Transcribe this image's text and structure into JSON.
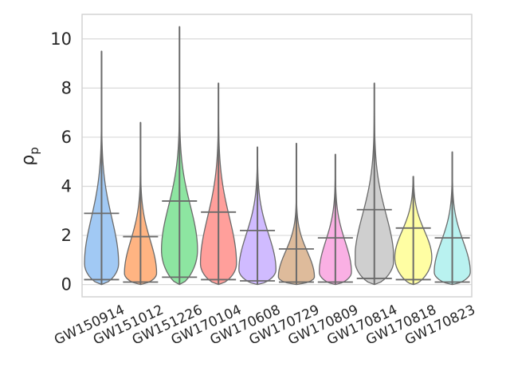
{
  "chart_data": {
    "type": "violin",
    "title": "",
    "xlabel": "",
    "ylabel": "ρ",
    "ylabel_subscript": "p",
    "ylim": [
      -0.5,
      11.0
    ],
    "yticks": [
      0,
      2,
      4,
      6,
      8,
      10
    ],
    "grid": true,
    "legend": "none",
    "categories": [
      "GW150914",
      "GW151012",
      "GW151226",
      "GW170104",
      "GW170608",
      "GW170729",
      "GW170809",
      "GW170814",
      "GW170818",
      "GW170823"
    ],
    "colors": [
      "#a1c9f4",
      "#ffb482",
      "#8de5a1",
      "#ff9f9b",
      "#d0bbff",
      "#debb9b",
      "#fab0e4",
      "#cfcfcf",
      "#fffea3",
      "#b9f2f0"
    ],
    "series": [
      {
        "category": "GW150914",
        "min": 0.0,
        "max": 9.5,
        "lower_bar": 0.2,
        "upper_bar": 2.9,
        "peak": 0.85,
        "halfwidth": 0.35
      },
      {
        "category": "GW151012",
        "min": 0.0,
        "max": 6.6,
        "lower_bar": 0.1,
        "upper_bar": 1.95,
        "peak": 0.45,
        "halfwidth": 0.33
      },
      {
        "category": "GW151226",
        "min": 0.0,
        "max": 10.5,
        "lower_bar": 0.3,
        "upper_bar": 3.4,
        "peak": 1.4,
        "halfwidth": 0.37
      },
      {
        "category": "GW170104",
        "min": 0.0,
        "max": 8.2,
        "lower_bar": 0.2,
        "upper_bar": 2.95,
        "peak": 0.85,
        "halfwidth": 0.37
      },
      {
        "category": "GW170608",
        "min": 0.0,
        "max": 5.6,
        "lower_bar": 0.15,
        "upper_bar": 2.2,
        "peak": 0.6,
        "halfwidth": 0.38
      },
      {
        "category": "GW170729",
        "min": 0.0,
        "max": 5.75,
        "lower_bar": 0.1,
        "upper_bar": 1.45,
        "peak": 0.3,
        "halfwidth": 0.37
      },
      {
        "category": "GW170809",
        "min": 0.0,
        "max": 5.3,
        "lower_bar": 0.1,
        "upper_bar": 1.9,
        "peak": 0.5,
        "halfwidth": 0.33
      },
      {
        "category": "GW170814",
        "min": 0.0,
        "max": 8.2,
        "lower_bar": 0.25,
        "upper_bar": 3.05,
        "peak": 1.0,
        "halfwidth": 0.4
      },
      {
        "category": "GW170818",
        "min": 0.0,
        "max": 4.4,
        "lower_bar": 0.2,
        "upper_bar": 2.3,
        "peak": 1.1,
        "halfwidth": 0.38
      },
      {
        "category": "GW170823",
        "min": 0.0,
        "max": 5.4,
        "lower_bar": 0.1,
        "upper_bar": 1.9,
        "peak": 0.5,
        "halfwidth": 0.37
      }
    ]
  }
}
